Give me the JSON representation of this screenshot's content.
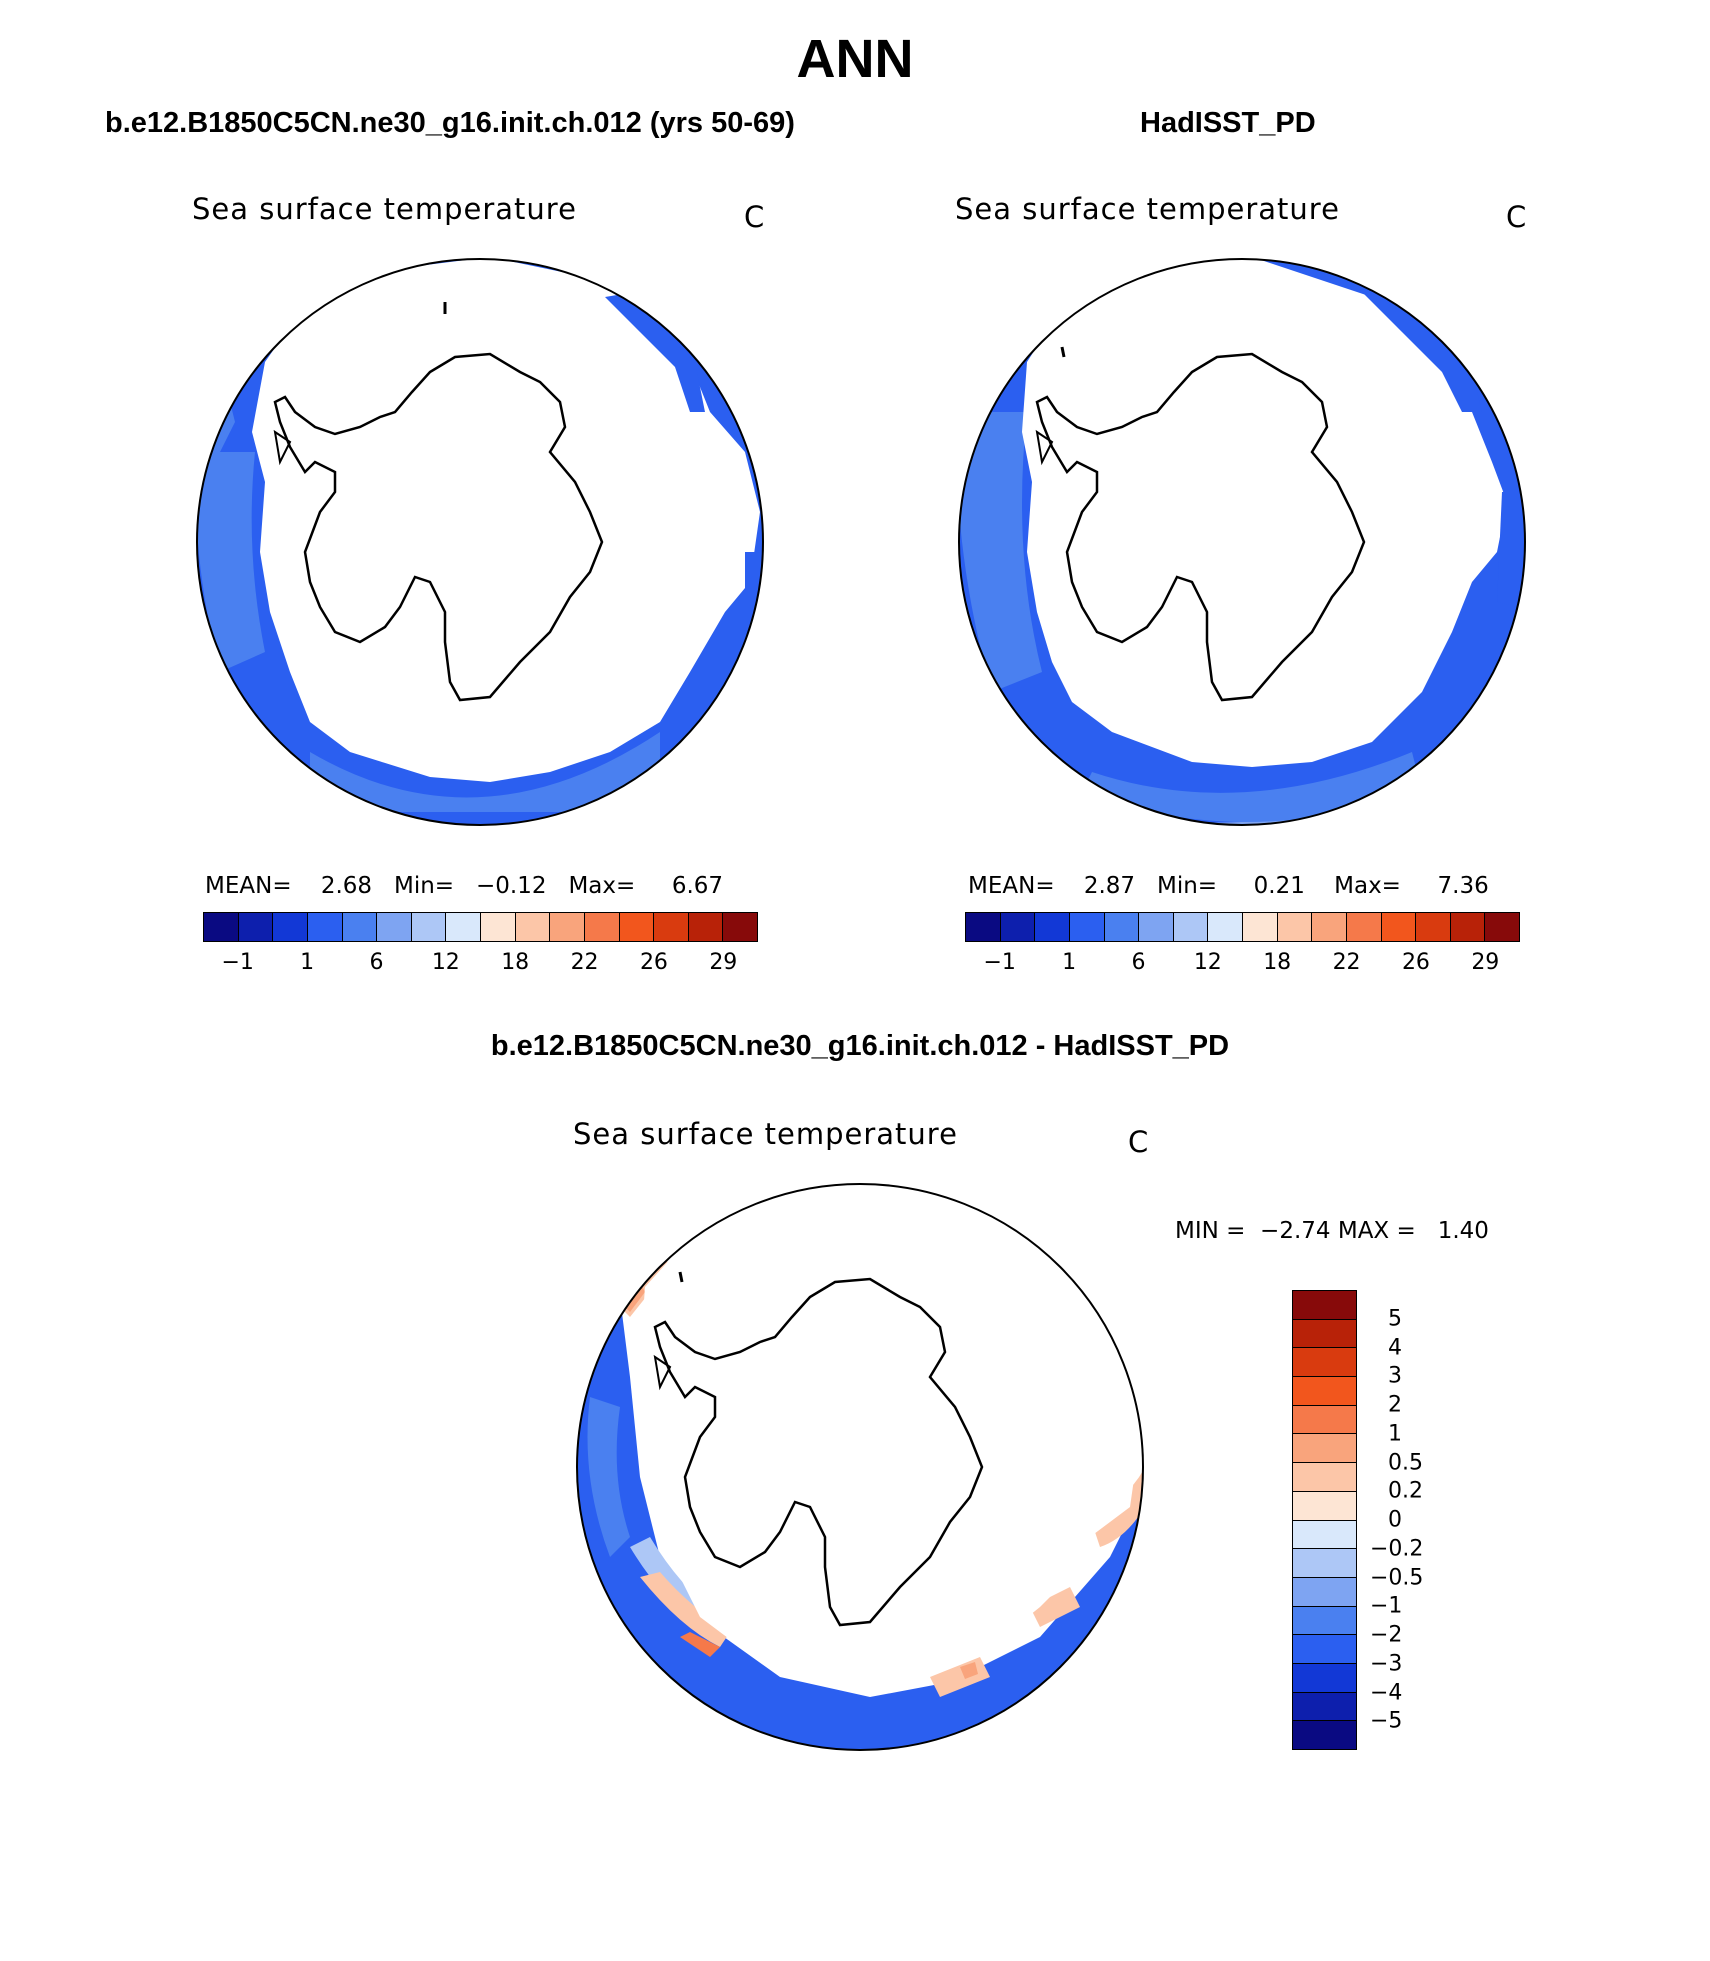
{
  "figure": {
    "title": "ANN"
  },
  "panels": {
    "model": {
      "heading": "b.e12.B1850C5CN.ne30_g16.init.ch.012 (yrs 50-69)",
      "variable": "Sea surface temperature",
      "units": "C",
      "mean_label": "MEAN=",
      "mean": "2.68",
      "min_label": "Min=",
      "min": "−0.12",
      "max_label": "Max=",
      "max": "6.67"
    },
    "obs": {
      "heading": "HadISST_PD",
      "variable": "Sea surface temperature",
      "units": "C",
      "mean_label": "MEAN=",
      "mean": "2.87",
      "min_label": "Min=",
      "min": "0.21",
      "max_label": "Max=",
      "max": "7.36"
    },
    "diff": {
      "heading": "b.e12.B1850C5CN.ne30_g16.init.ch.012 - HadISST_PD",
      "variable": "Sea surface temperature",
      "units": "C",
      "min_label": "MIN =",
      "min": "−2.74",
      "max_label": "MAX =",
      "max": "1.40"
    }
  },
  "colorbar_abs": {
    "colors": [
      "#0a0a82",
      "#0d1fad",
      "#1238d6",
      "#2b5ff0",
      "#4a80f0",
      "#7ea4f2",
      "#adc7f6",
      "#d9e8fb",
      "#fde5d4",
      "#fcc6a8",
      "#f9a47c",
      "#f5794a",
      "#f2561d",
      "#d93b0f",
      "#b82208",
      "#870a0a"
    ],
    "tick_labels": [
      "−1",
      "1",
      "6",
      "12",
      "18",
      "22",
      "26",
      "29"
    ],
    "tick_positions": [
      1,
      3,
      5,
      7,
      9,
      11,
      13,
      15
    ]
  },
  "colorbar_diff": {
    "colors": [
      "#870a0a",
      "#b82208",
      "#d93b0f",
      "#f2561d",
      "#f5794a",
      "#f9a47c",
      "#fcc6a8",
      "#fde5d4",
      "#d9e8fb",
      "#adc7f6",
      "#7ea4f2",
      "#4a80f0",
      "#2b5ff0",
      "#1238d6",
      "#0d1fad",
      "#0a0a82"
    ],
    "tick_labels": [
      "5",
      "4",
      "3",
      "2",
      "1",
      "0.5",
      "0.2",
      "0",
      "−0.2",
      "−0.5",
      "−1",
      "−2",
      "−3",
      "−4",
      "−5"
    ]
  }
}
